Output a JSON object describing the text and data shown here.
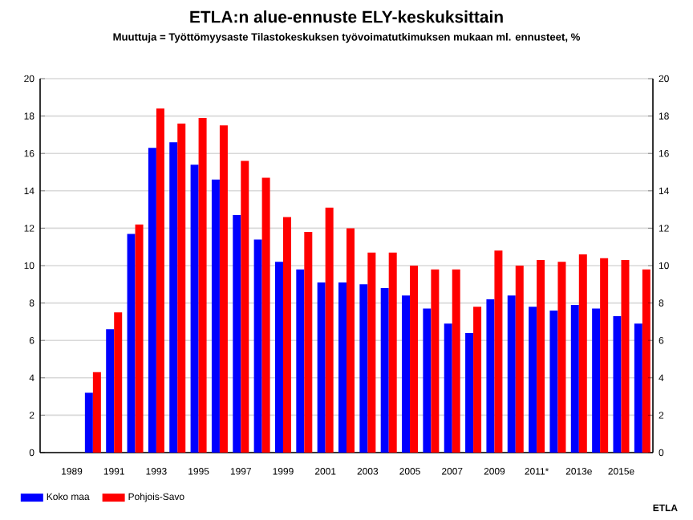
{
  "chart_data": {
    "type": "bar",
    "title": "ETLA:n alue-ennuste ELY-keskuksittain",
    "subtitle": "Muuttuja = Työttömyysaste Tilastokeskuksen työvoimatutkimuksen mukaan ml. ennusteet, %",
    "categories": [
      null,
      "1989",
      null,
      "1991",
      null,
      "1993",
      null,
      "1995",
      null,
      "1997",
      null,
      "1999",
      null,
      "2001",
      null,
      "2003",
      null,
      "2005",
      null,
      "2007",
      null,
      "2009",
      null,
      "2011*",
      null,
      "2013e",
      null,
      "2015e",
      null
    ],
    "series": [
      {
        "name": "Koko maa",
        "color": "#0000ff",
        "values": [
          null,
          null,
          3.2,
          6.6,
          11.7,
          16.3,
          16.6,
          15.4,
          14.6,
          12.7,
          11.4,
          10.2,
          9.8,
          9.1,
          9.1,
          9.0,
          8.8,
          8.4,
          7.7,
          6.9,
          6.4,
          8.2,
          8.4,
          7.8,
          7.6,
          7.9,
          7.7,
          7.3,
          6.9
        ]
      },
      {
        "name": "Pohjois-Savo",
        "color": "#ff0000",
        "values": [
          null,
          null,
          4.3,
          7.5,
          12.2,
          18.4,
          17.6,
          17.9,
          17.5,
          15.6,
          14.7,
          12.6,
          11.8,
          13.1,
          12.0,
          10.7,
          10.7,
          10.0,
          9.8,
          9.8,
          7.8,
          10.8,
          10.0,
          10.3,
          10.2,
          10.6,
          10.4,
          10.3,
          9.8
        ]
      }
    ],
    "ylim": [
      0,
      20
    ],
    "yticks": [
      0,
      2,
      4,
      6,
      8,
      10,
      12,
      14,
      16,
      18,
      20
    ],
    "y2lim": [
      0,
      20
    ],
    "y2ticks": [
      0,
      2,
      4,
      6,
      8,
      10,
      12,
      14,
      16,
      18,
      20
    ],
    "grid": "y",
    "legend": "bottom left",
    "annotations": [
      "ETLA"
    ]
  }
}
